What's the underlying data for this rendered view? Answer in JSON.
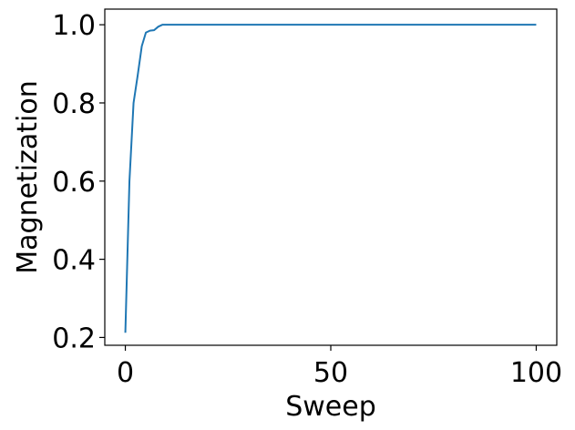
{
  "chart_data": {
    "type": "line",
    "title": "",
    "xlabel": "Sweep",
    "ylabel": "Magnetization",
    "xlim": [
      -5,
      105
    ],
    "ylim": [
      0.18,
      1.04
    ],
    "grid": false,
    "x_ticks": [
      0,
      50,
      100
    ],
    "x_tick_labels": [
      "0",
      "50",
      "100"
    ],
    "y_ticks": [
      0.2,
      0.4,
      0.6,
      0.8,
      1.0
    ],
    "y_tick_labels": [
      "0.2",
      "0.4",
      "0.6",
      "0.8",
      "1.0"
    ],
    "series": [
      {
        "color": "#1f77b4",
        "x": [
          0,
          1,
          2,
          3,
          4,
          5,
          6,
          7,
          8,
          9,
          10,
          15,
          20,
          25,
          30,
          35,
          40,
          45,
          50,
          55,
          60,
          65,
          70,
          75,
          80,
          85,
          90,
          95,
          100
        ],
        "y": [
          0.212,
          0.6,
          0.8,
          0.87,
          0.945,
          0.98,
          0.985,
          0.986,
          0.995,
          1.0,
          1.0,
          1.0,
          1.0,
          1.0,
          1.0,
          1.0,
          1.0,
          1.0,
          1.0,
          1.0,
          1.0,
          1.0,
          1.0,
          1.0,
          1.0,
          1.0,
          1.0,
          1.0,
          1.0
        ]
      }
    ]
  }
}
